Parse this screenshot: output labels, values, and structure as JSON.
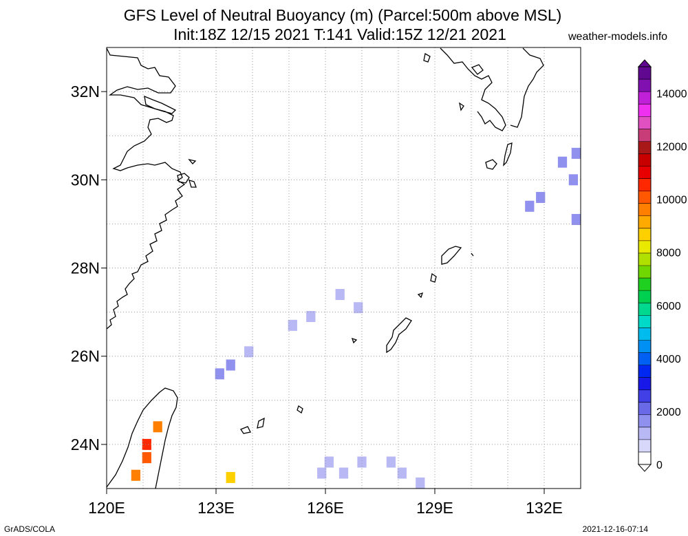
{
  "title_line1": "GFS Level of Neutral Buoyancy (m) (Parcel:500m above MSL)",
  "title_line2": "Init:18Z 12/15 2021 T:141 Valid:15Z 12/21 2021",
  "site": "weather-models.info",
  "footer_left": "GrADS/COLA",
  "footer_right": "2021-12-16-07:14",
  "map": {
    "lon_range": [
      120,
      133
    ],
    "lat_range": [
      23,
      33
    ],
    "lon_ticks": [
      {
        "value": 120,
        "label": "120E"
      },
      {
        "value": 123,
        "label": "123E"
      },
      {
        "value": 126,
        "label": "126E"
      },
      {
        "value": 129,
        "label": "129E"
      },
      {
        "value": 132,
        "label": "132E"
      }
    ],
    "lat_ticks": [
      {
        "value": 24,
        "label": "24N"
      },
      {
        "value": 26,
        "label": "26N"
      },
      {
        "value": 28,
        "label": "28N"
      },
      {
        "value": 30,
        "label": "30N"
      },
      {
        "value": 32,
        "label": "32N"
      }
    ],
    "grid": true
  },
  "colorbar": {
    "range": [
      0,
      15000
    ],
    "ticks": [
      {
        "value": 0,
        "label": "0"
      },
      {
        "value": 2000,
        "label": "2000"
      },
      {
        "value": 4000,
        "label": "4000"
      },
      {
        "value": 6000,
        "label": "6000"
      },
      {
        "value": 8000,
        "label": "8000"
      },
      {
        "value": 10000,
        "label": "10000"
      },
      {
        "value": 12000,
        "label": "12000"
      },
      {
        "value": 14000,
        "label": "14000"
      }
    ],
    "colors": [
      "#ffffff",
      "#d8d8fa",
      "#b8b8f4",
      "#9090ee",
      "#6a6ae8",
      "#4040e6",
      "#1818e8",
      "#0028f0",
      "#0060f4",
      "#0090f4",
      "#00bcee",
      "#00d8c8",
      "#00d890",
      "#00d050",
      "#20d020",
      "#70d800",
      "#b0e000",
      "#e8e800",
      "#ffd000",
      "#ffaa00",
      "#ff8000",
      "#ff5800",
      "#ff2800",
      "#e80000",
      "#c80000",
      "#a81818",
      "#c83c78",
      "#e050c0",
      "#f030f0",
      "#c020d8",
      "#8010b0",
      "#600890"
    ]
  },
  "field_cells": [
    {
      "lon": 132.9,
      "lat": 30.6,
      "value": 1500
    },
    {
      "lon": 132.5,
      "lat": 30.4,
      "value": 1500
    },
    {
      "lon": 132.8,
      "lat": 30.0,
      "value": 1500
    },
    {
      "lon": 131.9,
      "lat": 29.6,
      "value": 1600
    },
    {
      "lon": 131.6,
      "lat": 29.4,
      "value": 1600
    },
    {
      "lon": 132.9,
      "lat": 29.1,
      "value": 1500
    },
    {
      "lon": 126.4,
      "lat": 27.4,
      "value": 1000
    },
    {
      "lon": 126.9,
      "lat": 27.1,
      "value": 1000
    },
    {
      "lon": 125.6,
      "lat": 26.9,
      "value": 1400
    },
    {
      "lon": 125.1,
      "lat": 26.7,
      "value": 1400
    },
    {
      "lon": 123.9,
      "lat": 26.1,
      "value": 1200
    },
    {
      "lon": 123.4,
      "lat": 25.8,
      "value": 1500
    },
    {
      "lon": 123.1,
      "lat": 25.6,
      "value": 1500
    },
    {
      "lon": 126.1,
      "lat": 23.6,
      "value": 1300
    },
    {
      "lon": 127.0,
      "lat": 23.6,
      "value": 1300
    },
    {
      "lon": 127.8,
      "lat": 23.6,
      "value": 1300
    },
    {
      "lon": 125.9,
      "lat": 23.35,
      "value": 1300
    },
    {
      "lon": 126.5,
      "lat": 23.35,
      "value": 1300
    },
    {
      "lon": 128.1,
      "lat": 23.35,
      "value": 1300
    },
    {
      "lon": 128.6,
      "lat": 23.1,
      "value": 1400
    },
    {
      "lon": 121.4,
      "lat": 24.4,
      "value": 9500
    },
    {
      "lon": 121.1,
      "lat": 24.0,
      "value": 10500
    },
    {
      "lon": 121.1,
      "lat": 23.7,
      "value": 10000
    },
    {
      "lon": 120.8,
      "lat": 23.3,
      "value": 9800
    },
    {
      "lon": 123.4,
      "lat": 23.25,
      "value": 8800
    }
  ]
}
